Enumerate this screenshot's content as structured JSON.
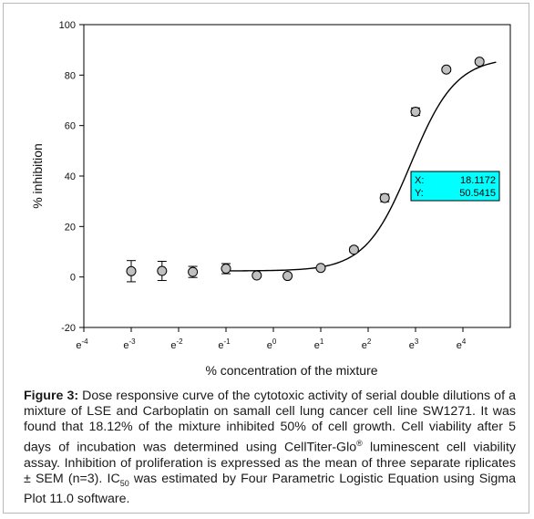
{
  "chart_data": {
    "type": "scatter",
    "xlabel": "% concentration of the mixture",
    "ylabel": "% inhibition",
    "xscale": "ln",
    "xlim_exp": [
      -4,
      5
    ],
    "ylim": [
      -20,
      100
    ],
    "yticks": [
      -20,
      0,
      20,
      40,
      60,
      80,
      100
    ],
    "xticks_exp": [
      -4,
      -3,
      -2,
      -1,
      0,
      1,
      2,
      3,
      4
    ],
    "xtick_base": "e",
    "grid": false,
    "points": [
      {
        "x_exp": -3.0,
        "y": 2.3,
        "err": 4.2
      },
      {
        "x_exp": -2.35,
        "y": 2.4,
        "err": 3.8
      },
      {
        "x_exp": -1.7,
        "y": 2.0,
        "err": 2.2
      },
      {
        "x_exp": -1.0,
        "y": 3.3,
        "err": 2.0
      },
      {
        "x_exp": -0.35,
        "y": 0.6,
        "err": 0
      },
      {
        "x_exp": 0.3,
        "y": 0.4,
        "err": 0
      },
      {
        "x_exp": 1.0,
        "y": 3.6,
        "err": 0
      },
      {
        "x_exp": 1.7,
        "y": 10.8,
        "err": 1.0
      },
      {
        "x_exp": 2.35,
        "y": 31.3,
        "err": 1.5
      },
      {
        "x_exp": 3.0,
        "y": 65.5,
        "err": 1.5
      },
      {
        "x_exp": 3.65,
        "y": 82.2,
        "err": 0.8
      },
      {
        "x_exp": 4.35,
        "y": 85.3,
        "err": 0.8
      }
    ],
    "fit_curve": {
      "model": "four-parameter logistic",
      "bottom": 2.4,
      "top": 87.0,
      "ic50": 18.1172,
      "hill": 2.1,
      "x_exp_range": [
        -1.0,
        4.7
      ]
    },
    "annotation": {
      "x_label": "X:",
      "x_value": "18.1172",
      "y_label": "Y:",
      "y_value": "50.5415",
      "background": "#00ffff"
    },
    "marker_color": "#c0c0c0",
    "line_color": "#000000"
  },
  "caption": {
    "label": "Figure 3:",
    "text1": " Dose responsive curve of the cytotoxic activity of serial double dilutions of a mixture of LSE and Carboplatin on samall cell lung cancer cell line SW1271. It was found that 18.12% of the mixture inhibited 50% of cell growth. Cell viability after 5 days of incubation was determined using CellTiter-Glo",
    "reg": "®",
    "text2": " luminescent cell viability assay. Inhibition of proliferation is expressed as the mean of three separate riplicates ± SEM (n=3). IC",
    "sub": "50",
    "text3": " was estimated by Four Parametric Logistic Equation using Sigma Plot 11.0 software."
  }
}
